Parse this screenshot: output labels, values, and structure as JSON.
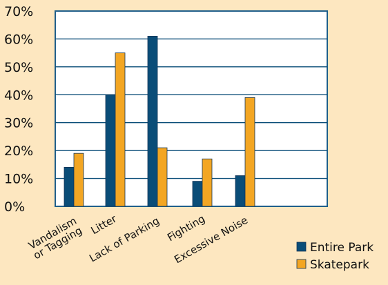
{
  "chart_data": {
    "type": "bar",
    "categories": [
      "Vandalism or Tagging",
      "Litter",
      "Lack of Parking",
      "Fighting",
      "Excessive Noise"
    ],
    "category_lines": [
      [
        "Vandalism",
        "or Tagging"
      ],
      [
        "Litter"
      ],
      [
        "Lack of Parking"
      ],
      [
        "Fighting"
      ],
      [
        "Excessive Noise"
      ]
    ],
    "series": [
      {
        "name": "Entire Park",
        "values": [
          14,
          40,
          61,
          9,
          11
        ],
        "color": "#0a4d78"
      },
      {
        "name": "Skatepark",
        "values": [
          19,
          55,
          21,
          17,
          39
        ],
        "color": "#f3a623"
      }
    ],
    "ytick_labels": [
      "0%",
      "10%",
      "20%",
      "30%",
      "40%",
      "50%",
      "60%",
      "70%"
    ],
    "ylim": [
      0,
      70
    ],
    "y_tick_step": 10,
    "grid": true,
    "legend_position": "bottom-right",
    "plot_background": "#ffffff",
    "page_background": "#fde7c0",
    "axis_color": "#1f5f8b",
    "grid_color": "#0a4d78",
    "bar_outline": "#123456"
  }
}
